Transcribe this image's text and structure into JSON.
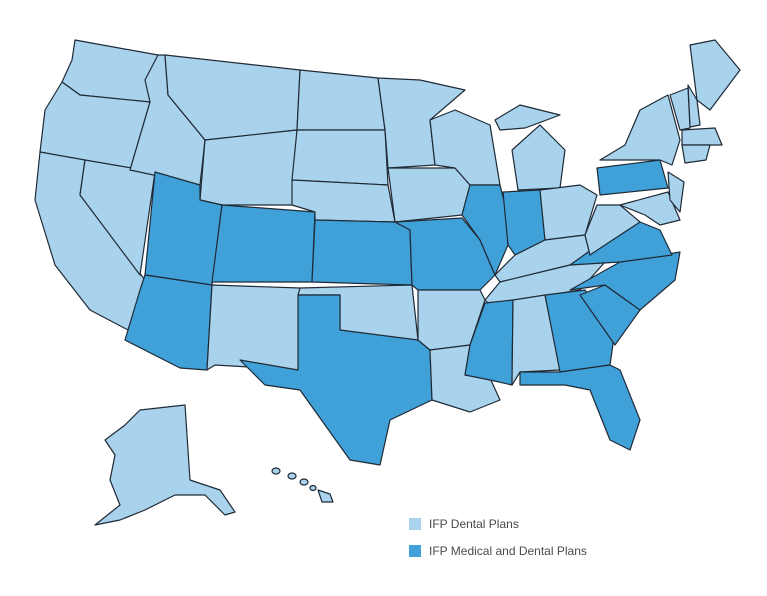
{
  "legend": {
    "items": [
      {
        "label": "IFP Dental Plans",
        "color": "#a9d3ec"
      },
      {
        "label": "IFP Medical and Dental Plans",
        "color": "#40a1d9"
      }
    ]
  }
}
